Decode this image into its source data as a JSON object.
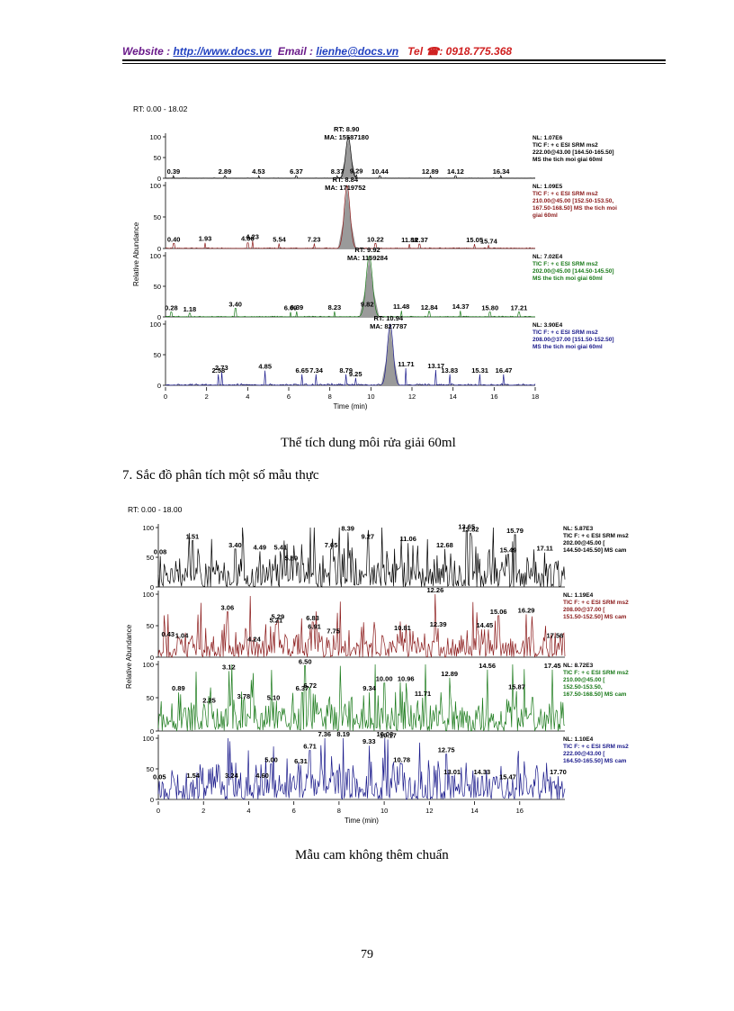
{
  "header": {
    "website_label": "Website : ",
    "website_url": "http://www.docs.vn",
    "email_label": "Email",
    "email_sep": " : ",
    "email_value": "lienhe@docs.vn",
    "tel_label": "Tel",
    "tel_value": ": 0918.775.368"
  },
  "chart_data": [
    {
      "type": "line",
      "title": "",
      "rt_label": "RT: 0.00 - 18.02",
      "xlabel": "Time (min)",
      "ylabel": "Relative Abundance",
      "xlim": [
        0,
        18
      ],
      "x_ticks": [
        "0",
        "2",
        "4",
        "6",
        "8",
        "10",
        "12",
        "14",
        "16",
        "18"
      ],
      "series": [
        {
          "name": "trace1",
          "color": "#000000",
          "peak_rt": 8.9,
          "peak_height": 100,
          "peak_width": 0.18,
          "noise": 3,
          "seed": 11,
          "info": [
            "NL: 1.07E6",
            "TIC F: + c ESI SRM ms2",
            "222.00@43.00 [164.50-165.50]",
            "MS the tich moi giai 60ml"
          ],
          "peak_label": [
            "RT: 8.90",
            "MA: 15587180"
          ],
          "labels": [
            [
              "0.39",
              0.39,
              6
            ],
            [
              "2.89",
              2.89,
              6
            ],
            [
              "4.53",
              4.53,
              6
            ],
            [
              "6.37",
              6.37,
              6
            ],
            [
              "8.37",
              8.37,
              6
            ],
            [
              "9.29",
              9.29,
              8
            ],
            [
              "10.44",
              10.44,
              6
            ],
            [
              "12.89",
              12.89,
              6
            ],
            [
              "14.12",
              14.12,
              6
            ],
            [
              "16.34",
              16.34,
              6
            ]
          ]
        },
        {
          "name": "trace2",
          "color": "#8b1a1a",
          "peak_rt": 8.84,
          "peak_height": 100,
          "peak_width": 0.2,
          "noise": 5,
          "seed": 23,
          "info": [
            "NL: 1.09E5",
            "TIC F: + c ESI SRM ms2",
            "210.00@45.00 [152.50-153.50,",
            "167.50-168.50] MS the tich moi",
            "giai 60ml"
          ],
          "peak_label": [
            "RT: 8.84",
            "MA: 1719752"
          ],
          "labels": [
            [
              "0.40",
              0.4,
              8
            ],
            [
              "1.93",
              1.93,
              9
            ],
            [
              "4.00",
              4.0,
              9
            ],
            [
              "4.23",
              4.23,
              12
            ],
            [
              "5.54",
              5.54,
              8
            ],
            [
              "7.23",
              7.23,
              8
            ],
            [
              "10.22",
              10.22,
              8
            ],
            [
              "11.88",
              11.88,
              7
            ],
            [
              "12.37",
              12.37,
              7
            ],
            [
              "15.05",
              15.05,
              7
            ],
            [
              "15.74",
              15.74,
              5
            ]
          ]
        },
        {
          "name": "trace3",
          "color": "#1a7a1a",
          "peak_rt": 9.92,
          "peak_height": 100,
          "peak_width": 0.22,
          "noise": 5,
          "seed": 37,
          "info": [
            "NL: 7.02E4",
            "TIC F: + c ESI SRM ms2",
            "202.00@45.00 [144.50-145.50]",
            "MS the tich moi giai 60ml"
          ],
          "peak_label": [
            "RT: 9.92",
            "MA: 1159284"
          ],
          "labels": [
            [
              "0.28",
              0.28,
              8
            ],
            [
              "1.18",
              1.18,
              6
            ],
            [
              "3.40",
              3.4,
              14
            ],
            [
              "6.09",
              6.09,
              8
            ],
            [
              "6.39",
              6.39,
              9
            ],
            [
              "8.23",
              8.23,
              9
            ],
            [
              "9.82",
              9.82,
              14
            ],
            [
              "11.48",
              11.48,
              10
            ],
            [
              "12.84",
              12.84,
              9
            ],
            [
              "14.37",
              14.37,
              10
            ],
            [
              "15.80",
              15.8,
              8
            ],
            [
              "17.21",
              17.21,
              8
            ]
          ]
        },
        {
          "name": "trace4",
          "color": "#1a1a8b",
          "peak_rt": 10.94,
          "peak_height": 100,
          "peak_width": 0.2,
          "noise": 10,
          "seed": 53,
          "info": [
            "NL: 3.90E4",
            "TIC F: + c ESI SRM ms2",
            "208.00@37.00 [151.50-152.50]",
            "MS the tich moi giai 60ml"
          ],
          "peak_label": [
            "RT: 10.94",
            "MA: 827787"
          ],
          "labels": [
            [
              "2.58",
              2.58,
              18
            ],
            [
              "2.73",
              2.73,
              22
            ],
            [
              "4.85",
              4.85,
              24
            ],
            [
              "6.65",
              6.65,
              18
            ],
            [
              "7.34",
              7.34,
              18
            ],
            [
              "8.79",
              8.79,
              18
            ],
            [
              "9.25",
              9.25,
              12
            ],
            [
              "11.71",
              11.71,
              28
            ],
            [
              "13.17",
              13.17,
              25
            ],
            [
              "13.83",
              13.83,
              18
            ],
            [
              "15.31",
              15.31,
              18
            ],
            [
              "16.47",
              16.47,
              18
            ]
          ]
        }
      ]
    },
    {
      "type": "line",
      "title": "",
      "rt_label": "RT: 0.00 - 18.00",
      "xlabel": "Time (min)",
      "ylabel": "Relative Abundance",
      "xlim": [
        0,
        18
      ],
      "x_ticks": [
        "0",
        "2",
        "4",
        "6",
        "8",
        "10",
        "12",
        "14",
        "16"
      ],
      "series": [
        {
          "name": "trace1",
          "color": "#000000",
          "noise": 80,
          "seed": 71,
          "info": [
            "NL: 5.87E3",
            "TIC F: + c ESI SRM ms2",
            "202.00@45.00 [",
            "144.50-145.50] MS cam"
          ],
          "labels": [
            [
              "0.08",
              0.08,
              52
            ],
            [
              "1.51",
              1.51,
              78
            ],
            [
              "3.40",
              3.4,
              64
            ],
            [
              "4.49",
              4.49,
              60
            ],
            [
              "5.41",
              5.41,
              60
            ],
            [
              "5.89",
              5.89,
              42
            ],
            [
              "7.65",
              7.65,
              64
            ],
            [
              "8.39",
              8.39,
              92
            ],
            [
              "9.27",
              9.27,
              78
            ],
            [
              "11.06",
              11.06,
              74
            ],
            [
              "12.68",
              12.68,
              64
            ],
            [
              "13.65",
              13.65,
              95
            ],
            [
              "13.82",
              13.82,
              90
            ],
            [
              "15.49",
              15.49,
              55
            ],
            [
              "15.79",
              15.79,
              88
            ],
            [
              "17.11",
              17.11,
              58
            ]
          ]
        },
        {
          "name": "trace2",
          "color": "#8b1a1a",
          "noise": 55,
          "seed": 83,
          "info": [
            "NL: 1.19E4",
            "TIC F: + c ESI SRM ms2",
            "208.00@37.00 [",
            "151.50-152.50] MS cam"
          ],
          "labels": [
            [
              "0.43",
              0.43,
              30
            ],
            [
              "1.04",
              1.04,
              28
            ],
            [
              "3.06",
              3.06,
              72
            ],
            [
              "4.24",
              4.24,
              22
            ],
            [
              "5.21",
              5.21,
              52
            ],
            [
              "5.29",
              5.29,
              58
            ],
            [
              "6.83",
              6.83,
              56
            ],
            [
              "6.91",
              6.91,
              42
            ],
            [
              "7.75",
              7.75,
              35
            ],
            [
              "10.81",
              10.81,
              40
            ],
            [
              "12.26",
              12.26,
              100
            ],
            [
              "12.39",
              12.39,
              46
            ],
            [
              "14.45",
              14.45,
              44
            ],
            [
              "15.06",
              15.06,
              66
            ],
            [
              "16.29",
              16.29,
              68
            ],
            [
              "17.56",
              17.56,
              28
            ]
          ]
        },
        {
          "name": "trace3",
          "color": "#1a7a1a",
          "noise": 70,
          "seed": 97,
          "info": [
            "NL: 8.72E3",
            "TIC F: + c ESI SRM ms2",
            "210.00@45.00 [",
            "152.50-153.50,",
            "167.50-168.50] MS cam"
          ],
          "labels": [
            [
              "0.89",
              0.89,
              58
            ],
            [
              "2.25",
              2.25,
              40
            ],
            [
              "3.12",
              3.12,
              90
            ],
            [
              "3.78",
              3.78,
              46
            ],
            [
              "5.10",
              5.1,
              44
            ],
            [
              "6.37",
              6.37,
              58
            ],
            [
              "6.50",
              6.5,
              98
            ],
            [
              "6.72",
              6.72,
              62
            ],
            [
              "9.34",
              9.34,
              58
            ],
            [
              "10.00",
              10.0,
              72
            ],
            [
              "10.96",
              10.96,
              72
            ],
            [
              "11.71",
              11.71,
              50
            ],
            [
              "12.89",
              12.89,
              80
            ],
            [
              "14.56",
              14.56,
              92
            ],
            [
              "15.87",
              15.87,
              60
            ],
            [
              "17.45",
              17.45,
              92
            ]
          ]
        },
        {
          "name": "trace4",
          "color": "#1a1a8b",
          "noise": 75,
          "seed": 113,
          "info": [
            "NL: 1.10E4",
            "TIC F: + c ESI SRM ms2",
            "222.00@43.00 [",
            "164.50-165.50] MS cam"
          ],
          "labels": [
            [
              "0.05",
              0.05,
              30
            ],
            [
              "1.54",
              1.54,
              32
            ],
            [
              "3.24",
              3.24,
              32
            ],
            [
              "4.60",
              4.6,
              32
            ],
            [
              "5.00",
              5.0,
              58
            ],
            [
              "6.31",
              6.31,
              56
            ],
            [
              "6.71",
              6.71,
              80
            ],
            [
              "7.36",
              7.36,
              102
            ],
            [
              "8.19",
              8.19,
              104
            ],
            [
              "9.33",
              9.33,
              88
            ],
            [
              "10.03",
              10.03,
              104
            ],
            [
              "10.17",
              10.17,
              98
            ],
            [
              "10.78",
              10.78,
              58
            ],
            [
              "12.75",
              12.75,
              74
            ],
            [
              "13.01",
              13.01,
              38
            ],
            [
              "14.33",
              14.33,
              38
            ],
            [
              "15.47",
              15.47,
              30
            ],
            [
              "17.70",
              17.7,
              38
            ]
          ]
        }
      ]
    }
  ],
  "axis_ticks_y": [
    "0",
    "50",
    "100"
  ],
  "caption1": "Thể tích dung môi rửa giải 60ml",
  "section_title": "7. Sắc đồ phân tích một số mẫu thực",
  "caption2": "Mẫu cam không thêm chuẩn",
  "page_number": "79"
}
